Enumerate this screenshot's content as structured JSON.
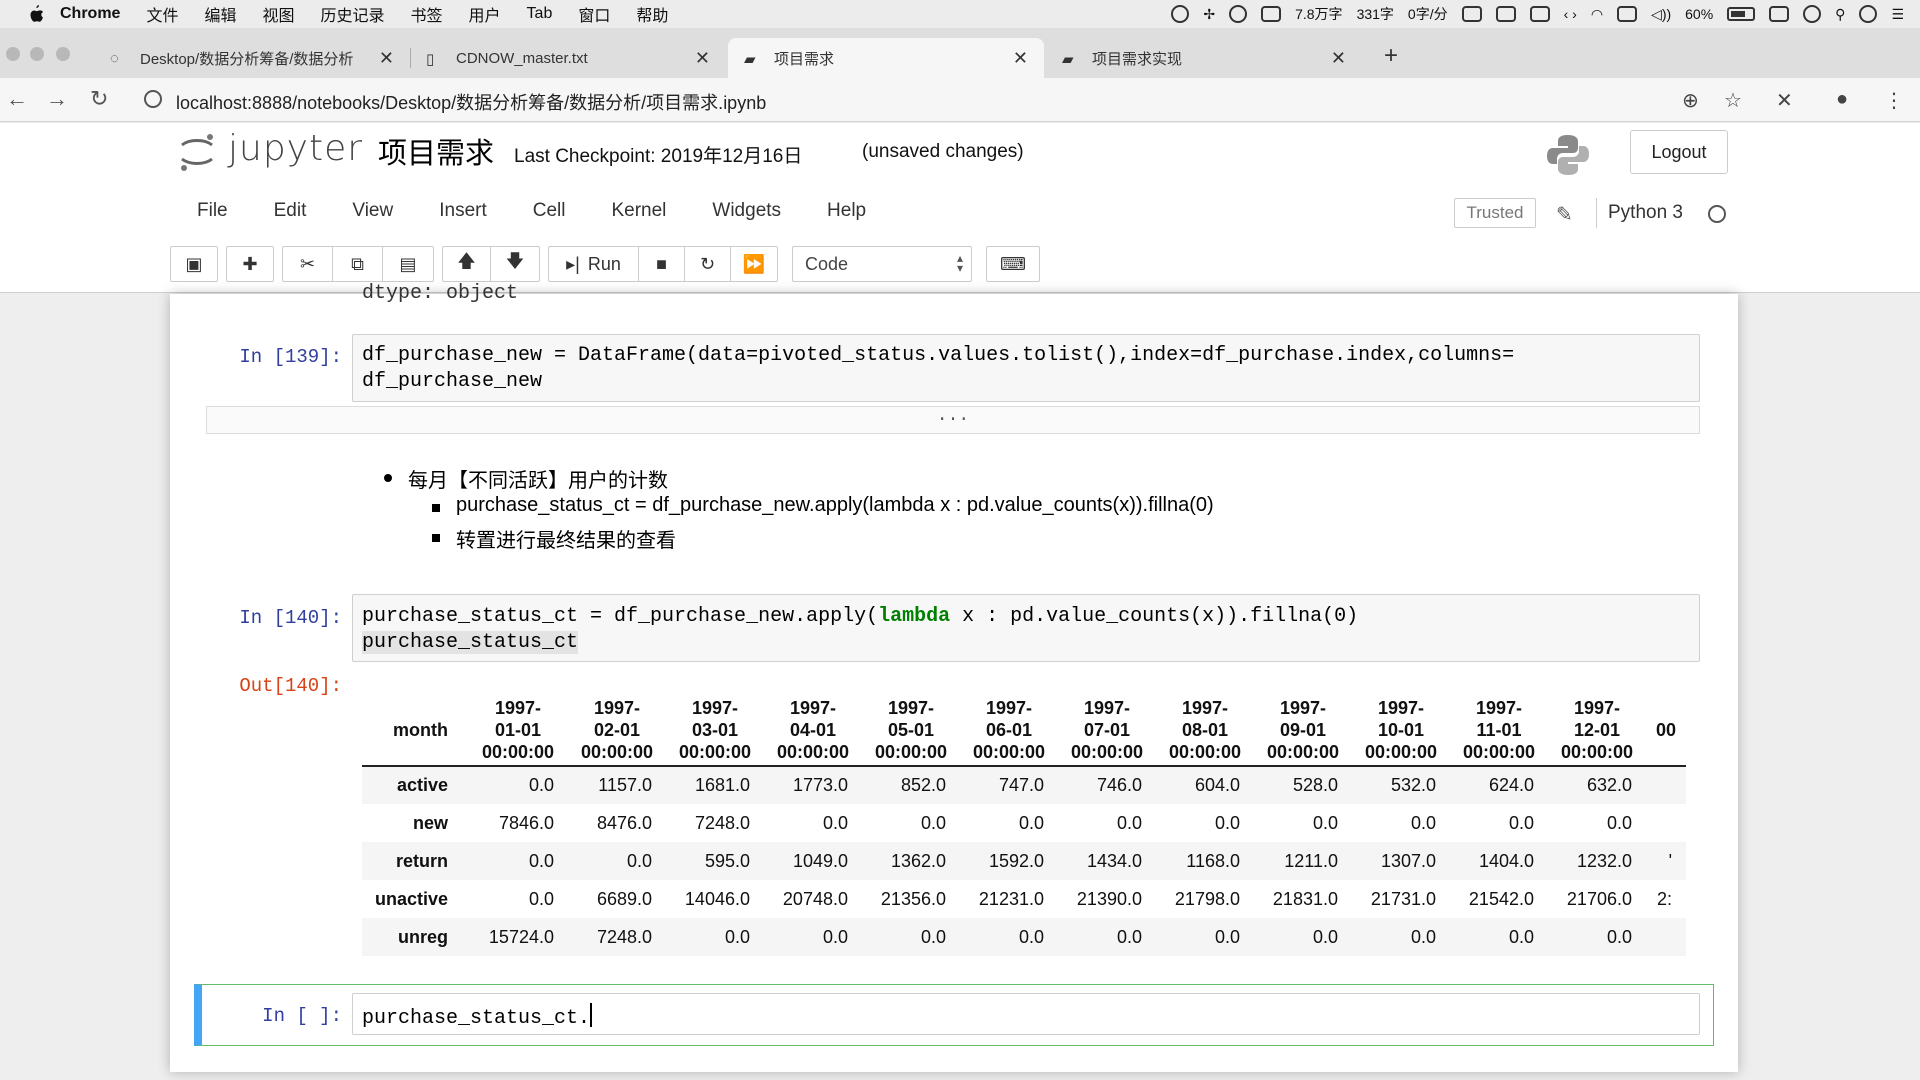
{
  "menubar": {
    "app": "Chrome",
    "items": [
      "文件",
      "编辑",
      "视图",
      "历史记录",
      "书签",
      "用户",
      "Tab",
      "窗口",
      "帮助"
    ],
    "status": {
      "words": "7.8万字",
      "chars": "331字",
      "rate": "0字/分",
      "battery": "60%"
    }
  },
  "tabs": [
    {
      "title": "Desktop/数据分析筹备/数据分析",
      "active": false
    },
    {
      "title": "CDNOW_master.txt",
      "active": false
    },
    {
      "title": "项目需求",
      "active": true
    },
    {
      "title": "项目需求实现",
      "active": false
    }
  ],
  "address": {
    "url": "localhost:8888/notebooks/Desktop/数据分析筹备/数据分析/项目需求.ipynb"
  },
  "jupyter": {
    "wordmark": "jupyter",
    "notebook_name": "项目需求",
    "checkpoint": "Last Checkpoint: 2019年12月16日",
    "unsaved": "(unsaved changes)",
    "logout": "Logout",
    "menus": [
      "File",
      "Edit",
      "View",
      "Insert",
      "Cell",
      "Kernel",
      "Widgets",
      "Help"
    ],
    "trusted": "Trusted",
    "kernel": "Python 3",
    "run_label": "Run",
    "cell_type": "Code"
  },
  "cells": {
    "dtype_line": "dtype: object",
    "cell139": {
      "prompt": "In [139]:",
      "line1": "df_purchase_new = DataFrame(data=pivoted_status.values.tolist(),index=df_purchase.index,columns=",
      "line2": "df_purchase_new",
      "collapsed": "..."
    },
    "markdown": {
      "bullet1": "每月【不同活跃】用户的计数",
      "sub1": "purchase_status_ct = df_purchase_new.apply(lambda x : pd.value_counts(x)).fillna(0)",
      "sub2": "转置进行最终结果的查看"
    },
    "cell140": {
      "prompt": "In [140]:",
      "line1_a": "purchase_status_ct = df_purchase_new.apply(",
      "line1_kw": "lambda",
      "line1_b": " x : pd.value_counts(x)).fillna(0)",
      "line2": "purchase_status_ct",
      "out_prompt": "Out[140]:"
    },
    "table": {
      "index_name": "month",
      "columns": [
        [
          "1997-",
          "01-01",
          "00:00:00"
        ],
        [
          "1997-",
          "02-01",
          "00:00:00"
        ],
        [
          "1997-",
          "03-01",
          "00:00:00"
        ],
        [
          "1997-",
          "04-01",
          "00:00:00"
        ],
        [
          "1997-",
          "05-01",
          "00:00:00"
        ],
        [
          "1997-",
          "06-01",
          "00:00:00"
        ],
        [
          "1997-",
          "07-01",
          "00:00:00"
        ],
        [
          "1997-",
          "08-01",
          "00:00:00"
        ],
        [
          "1997-",
          "09-01",
          "00:00:00"
        ],
        [
          "1997-",
          "10-01",
          "00:00:00"
        ],
        [
          "1997-",
          "11-01",
          "00:00:00"
        ],
        [
          "1997-",
          "12-01",
          "00:00:00"
        ],
        [
          "",
          "",
          "00"
        ]
      ],
      "rows": [
        {
          "label": "active",
          "values": [
            "0.0",
            "1157.0",
            "1681.0",
            "1773.0",
            "852.0",
            "747.0",
            "746.0",
            "604.0",
            "528.0",
            "532.0",
            "624.0",
            "632.0",
            ""
          ]
        },
        {
          "label": "new",
          "values": [
            "7846.0",
            "8476.0",
            "7248.0",
            "0.0",
            "0.0",
            "0.0",
            "0.0",
            "0.0",
            "0.0",
            "0.0",
            "0.0",
            "0.0",
            ""
          ]
        },
        {
          "label": "return",
          "values": [
            "0.0",
            "0.0",
            "595.0",
            "1049.0",
            "1362.0",
            "1592.0",
            "1434.0",
            "1168.0",
            "1211.0",
            "1307.0",
            "1404.0",
            "1232.0",
            "'"
          ]
        },
        {
          "label": "unactive",
          "values": [
            "0.0",
            "6689.0",
            "14046.0",
            "20748.0",
            "21356.0",
            "21231.0",
            "21390.0",
            "21798.0",
            "21831.0",
            "21731.0",
            "21542.0",
            "21706.0",
            "2:"
          ]
        },
        {
          "label": "unreg",
          "values": [
            "15724.0",
            "7248.0",
            "0.0",
            "0.0",
            "0.0",
            "0.0",
            "0.0",
            "0.0",
            "0.0",
            "0.0",
            "0.0",
            "0.0",
            ""
          ]
        }
      ]
    },
    "cell_new": {
      "prompt": "In [ ]:",
      "code": "purchase_status_ct."
    }
  }
}
